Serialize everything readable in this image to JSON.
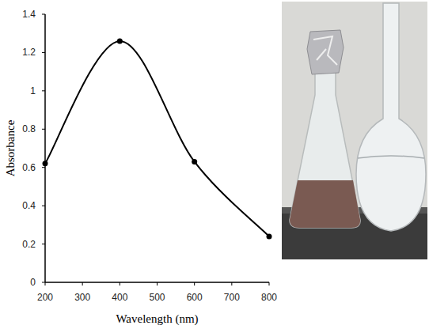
{
  "chart_data": {
    "type": "line",
    "x_label": "Wavelength (nm)",
    "y_label": "Absorbance",
    "x": [
      200,
      400,
      600,
      800
    ],
    "values": [
      0.62,
      1.26,
      0.63,
      0.24
    ],
    "color": "#000000",
    "marker": "circle",
    "line_style": "solid",
    "xlim": [
      200,
      800
    ],
    "xticks": [
      200,
      300,
      400,
      500,
      600,
      700,
      800
    ],
    "ylim": [
      0,
      1.4
    ],
    "yticks": [
      0,
      0.2,
      0.4,
      0.6,
      0.8,
      1,
      1.2,
      1.4
    ],
    "grid": false
  }
}
